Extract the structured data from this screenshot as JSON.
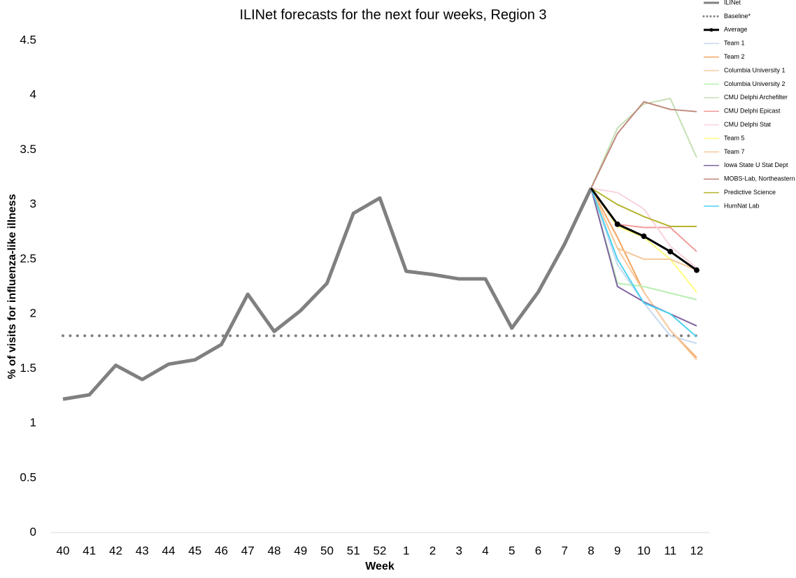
{
  "chart_data": {
    "type": "line",
    "title": "ILINet forecasts for the next four weeks, Region 3",
    "x_label": "Week",
    "y_label": "% of visits for influenza-like illness",
    "categories": [
      "40",
      "41",
      "42",
      "43",
      "44",
      "45",
      "46",
      "47",
      "48",
      "49",
      "50",
      "51",
      "52",
      "1",
      "2",
      "3",
      "4",
      "5",
      "6",
      "7",
      "8",
      "9",
      "10",
      "11",
      "12"
    ],
    "ylim": [
      0,
      4.5
    ],
    "yticks": [
      0,
      0.5,
      1,
      1.5,
      2,
      2.5,
      3,
      3.5,
      4,
      4.5
    ],
    "legend": "top-right",
    "series": [
      {
        "name": "ILINet",
        "color": "#808080",
        "line_width": 5,
        "values": [
          1.22,
          1.26,
          1.53,
          1.4,
          1.54,
          1.58,
          1.72,
          2.18,
          1.84,
          2.03,
          2.28,
          2.92,
          3.06,
          2.39,
          2.36,
          2.32,
          2.32,
          1.87,
          2.2,
          2.64,
          3.15,
          null,
          null,
          null,
          null
        ]
      },
      {
        "name": "Baseline*",
        "color": "#808080",
        "line_width": 4,
        "dash": "dotted",
        "values": [
          1.8,
          1.8,
          1.8,
          1.8,
          1.8,
          1.8,
          1.8,
          1.8,
          1.8,
          1.8,
          1.8,
          1.8,
          1.8,
          1.8,
          1.8,
          1.8,
          1.8,
          1.8,
          1.8,
          1.8,
          1.8,
          1.8,
          1.8,
          1.8,
          1.8
        ]
      },
      {
        "name": "Average",
        "color": "#000000",
        "line_width": 3,
        "markers": true,
        "values": [
          null,
          null,
          null,
          null,
          null,
          null,
          null,
          null,
          null,
          null,
          null,
          null,
          null,
          null,
          null,
          null,
          null,
          null,
          null,
          null,
          3.15,
          2.82,
          2.71,
          2.57,
          2.4
        ]
      },
      {
        "name": "Team 1",
        "color": "#c5d9f1",
        "values": [
          null,
          null,
          null,
          null,
          null,
          null,
          null,
          null,
          null,
          null,
          null,
          null,
          null,
          null,
          null,
          null,
          null,
          null,
          null,
          null,
          3.15,
          2.45,
          2.1,
          1.8,
          1.73
        ]
      },
      {
        "name": "Team 2",
        "color": "#f4a460",
        "values": [
          null,
          null,
          null,
          null,
          null,
          null,
          null,
          null,
          null,
          null,
          null,
          null,
          null,
          null,
          null,
          null,
          null,
          null,
          null,
          null,
          3.15,
          2.7,
          2.2,
          1.85,
          1.6
        ]
      },
      {
        "name": "Columbia University 1",
        "color": "#f8cba0",
        "values": [
          null,
          null,
          null,
          null,
          null,
          null,
          null,
          null,
          null,
          null,
          null,
          null,
          null,
          null,
          null,
          null,
          null,
          null,
          null,
          null,
          3.15,
          2.6,
          2.2,
          1.85,
          1.58
        ]
      },
      {
        "name": "Columbia University 2",
        "color": "#b7f0b1",
        "values": [
          null,
          null,
          null,
          null,
          null,
          null,
          null,
          null,
          null,
          null,
          null,
          null,
          null,
          null,
          null,
          null,
          null,
          null,
          null,
          null,
          3.15,
          2.28,
          2.25,
          2.19,
          2.13
        ]
      },
      {
        "name": "CMU Delphi Archefilter",
        "color": "#c5e0b4",
        "values": [
          null,
          null,
          null,
          null,
          null,
          null,
          null,
          null,
          null,
          null,
          null,
          null,
          null,
          null,
          null,
          null,
          null,
          null,
          null,
          null,
          3.15,
          3.7,
          3.92,
          3.97,
          3.43
        ]
      },
      {
        "name": "CMU Delphi Epicast",
        "color": "#f19c99",
        "values": [
          null,
          null,
          null,
          null,
          null,
          null,
          null,
          null,
          null,
          null,
          null,
          null,
          null,
          null,
          null,
          null,
          null,
          null,
          null,
          null,
          3.15,
          2.82,
          2.79,
          2.79,
          2.57
        ]
      },
      {
        "name": "CMU Delphi Stat",
        "color": "#f8d3dc",
        "values": [
          null,
          null,
          null,
          null,
          null,
          null,
          null,
          null,
          null,
          null,
          null,
          null,
          null,
          null,
          null,
          null,
          null,
          null,
          null,
          null,
          3.15,
          3.11,
          2.96,
          2.62,
          2.42
        ]
      },
      {
        "name": "Team 5",
        "color": "#ffff80",
        "values": [
          null,
          null,
          null,
          null,
          null,
          null,
          null,
          null,
          null,
          null,
          null,
          null,
          null,
          null,
          null,
          null,
          null,
          null,
          null,
          null,
          3.15,
          2.8,
          2.7,
          2.5,
          2.2
        ]
      },
      {
        "name": "Team 7",
        "color": "#f4c99a",
        "values": [
          null,
          null,
          null,
          null,
          null,
          null,
          null,
          null,
          null,
          null,
          null,
          null,
          null,
          null,
          null,
          null,
          null,
          null,
          null,
          null,
          3.15,
          2.6,
          2.5,
          2.5,
          2.4
        ]
      },
      {
        "name": "Iowa State U Stat Dept",
        "color": "#8064a2",
        "values": [
          null,
          null,
          null,
          null,
          null,
          null,
          null,
          null,
          null,
          null,
          null,
          null,
          null,
          null,
          null,
          null,
          null,
          null,
          null,
          null,
          3.15,
          2.25,
          2.11,
          2.0,
          1.89
        ]
      },
      {
        "name": "MOBS-Lab, Northeastern",
        "color": "#c0887e",
        "values": [
          null,
          null,
          null,
          null,
          null,
          null,
          null,
          null,
          null,
          null,
          null,
          null,
          null,
          null,
          null,
          null,
          null,
          null,
          null,
          null,
          3.15,
          3.65,
          3.94,
          3.87,
          3.85
        ]
      },
      {
        "name": "Predictive Science",
        "color": "#b4b42c",
        "values": [
          null,
          null,
          null,
          null,
          null,
          null,
          null,
          null,
          null,
          null,
          null,
          null,
          null,
          null,
          null,
          null,
          null,
          null,
          null,
          null,
          3.15,
          3.0,
          2.89,
          2.8,
          2.8
        ]
      },
      {
        "name": "HumNat Lab",
        "color": "#4dd2f0",
        "values": [
          null,
          null,
          null,
          null,
          null,
          null,
          null,
          null,
          null,
          null,
          null,
          null,
          null,
          null,
          null,
          null,
          null,
          null,
          null,
          null,
          3.15,
          2.5,
          2.1,
          2.0,
          1.79
        ]
      }
    ]
  }
}
